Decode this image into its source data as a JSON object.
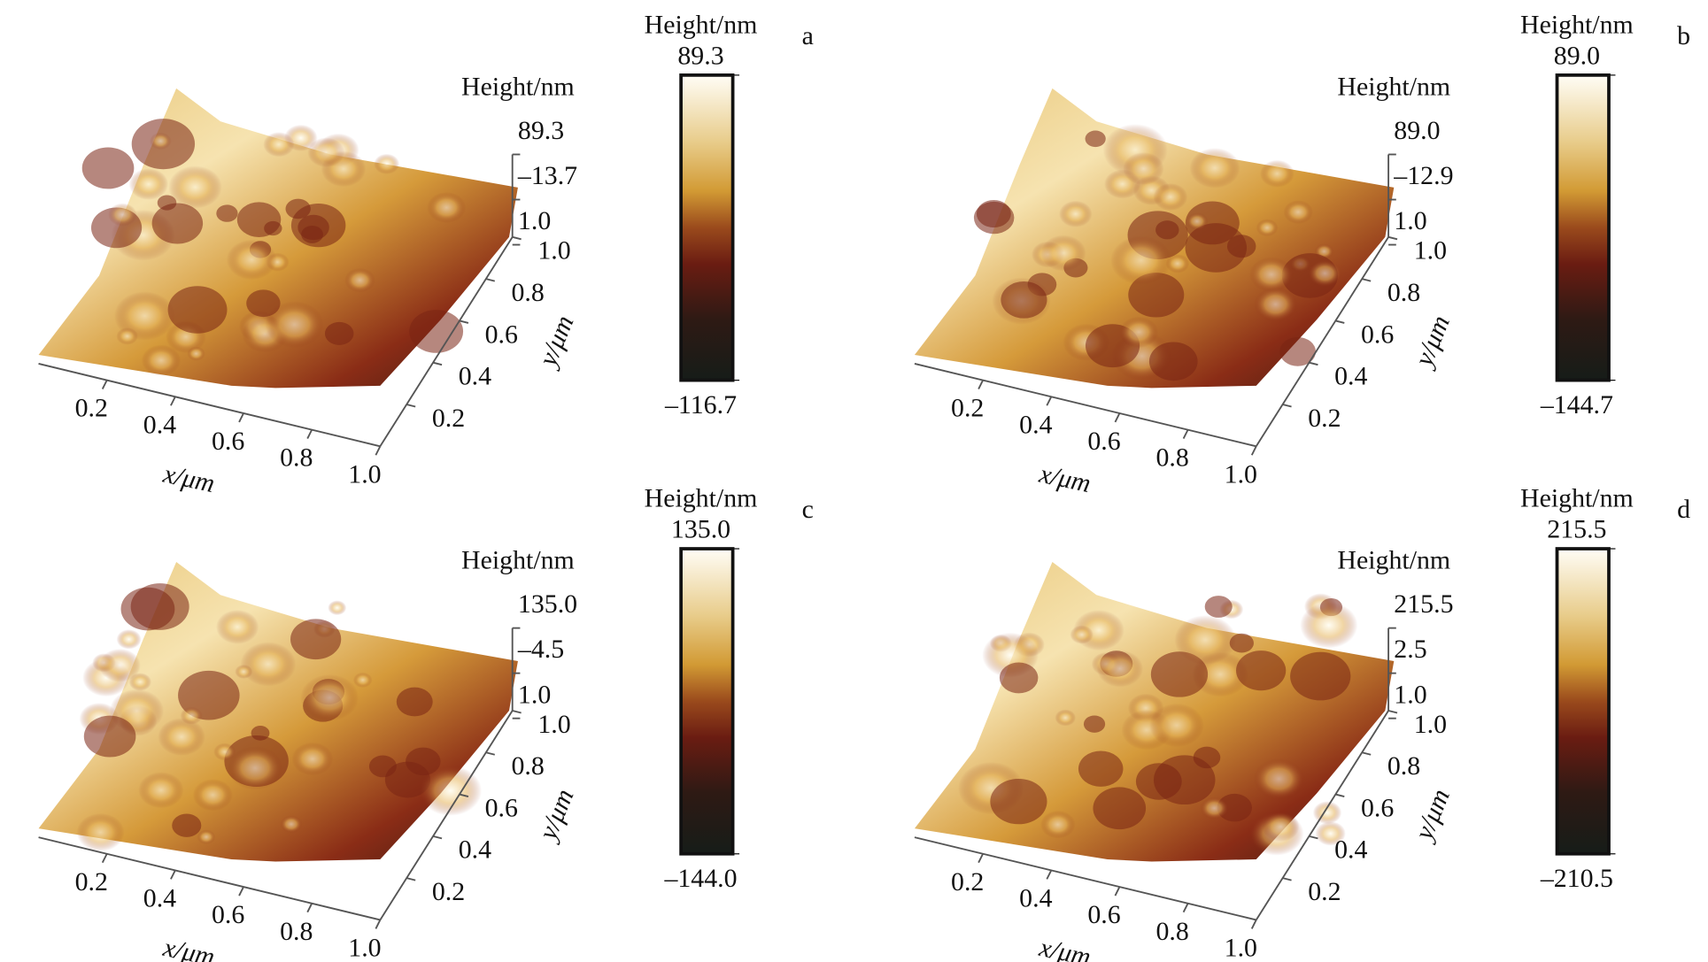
{
  "chart_data": [
    {
      "type": "surface",
      "panel_label": "a",
      "zlabel": "Height/nm",
      "zticks": [
        {
          "value": 89.3,
          "label": "89.3"
        },
        {
          "value": -13.7,
          "label": "–13.7"
        },
        {
          "value": 1,
          "label": "1.0"
        }
      ],
      "xticks": [
        0.2,
        0.4,
        0.6,
        0.8,
        {
          "value": 1,
          "label": "1.0"
        }
      ],
      "yticks": [
        0.2,
        0.4,
        0.6,
        0.8,
        {
          "value": 1,
          "label": "1.0"
        }
      ],
      "xlim": [
        0,
        1
      ],
      "ylim": [
        0,
        1
      ],
      "xlabel": "x/μm",
      "ylabel": "y/μm",
      "colorbar_label": "Height/nm",
      "clim": [
        {
          "value": -116.7,
          "label": "–116.7"
        },
        {
          "value": 89.3,
          "label": "89.3"
        }
      ]
    },
    {
      "type": "surface",
      "panel_label": "b",
      "zlabel": "Height/nm",
      "zticks": [
        {
          "value": 89.0,
          "label": "89.0"
        },
        {
          "value": -12.9,
          "label": "–12.9"
        },
        {
          "value": 1,
          "label": "1.0"
        }
      ],
      "xticks": [
        0.2,
        0.4,
        0.6,
        0.8,
        {
          "value": 1,
          "label": "1.0"
        }
      ],
      "yticks": [
        0.2,
        0.4,
        0.6,
        0.8,
        {
          "value": 1,
          "label": "1.0"
        }
      ],
      "xlim": [
        0,
        1
      ],
      "ylim": [
        0,
        1
      ],
      "xlabel": "x/μm",
      "ylabel": "y/μm",
      "colorbar_label": "Height/nm",
      "clim": [
        {
          "value": -144.7,
          "label": "–144.7"
        },
        {
          "value": 89.0,
          "label": "89.0"
        }
      ]
    },
    {
      "type": "surface",
      "panel_label": "c",
      "zlabel": "Height/nm",
      "zticks": [
        {
          "value": 135.0,
          "label": "135.0"
        },
        {
          "value": -4.5,
          "label": "–4.5"
        },
        {
          "value": 1,
          "label": "1.0"
        }
      ],
      "xticks": [
        0.2,
        0.4,
        0.6,
        0.8,
        {
          "value": 1,
          "label": "1.0"
        }
      ],
      "yticks": [
        0.2,
        0.4,
        0.6,
        0.8,
        {
          "value": 1,
          "label": "1.0"
        }
      ],
      "xlim": [
        0,
        1
      ],
      "ylim": [
        0,
        1
      ],
      "xlabel": "x/μm",
      "ylabel": "y/μm",
      "colorbar_label": "Height/nm",
      "clim": [
        {
          "value": -144.0,
          "label": "–144.0"
        },
        {
          "value": 135.0,
          "label": "135.0"
        }
      ]
    },
    {
      "type": "surface",
      "panel_label": "d",
      "zlabel": "Height/nm",
      "zticks": [
        {
          "value": 215.5,
          "label": "215.5"
        },
        {
          "value": 2.5,
          "label": "2.5"
        },
        {
          "value": 1,
          "label": "1.0"
        }
      ],
      "xticks": [
        0.2,
        0.4,
        0.6,
        0.8,
        {
          "value": 1,
          "label": "1.0"
        }
      ],
      "yticks": [
        0.2,
        0.4,
        0.6,
        0.8,
        {
          "value": 1,
          "label": "1.0"
        }
      ],
      "xlim": [
        0,
        1
      ],
      "ylim": [
        0,
        1
      ],
      "xlabel": "x/μm",
      "ylabel": "y/μm",
      "colorbar_label": "Height/nm",
      "clim": [
        {
          "value": -210.5,
          "label": "–210.5"
        },
        {
          "value": 215.5,
          "label": "215.5"
        }
      ]
    }
  ]
}
